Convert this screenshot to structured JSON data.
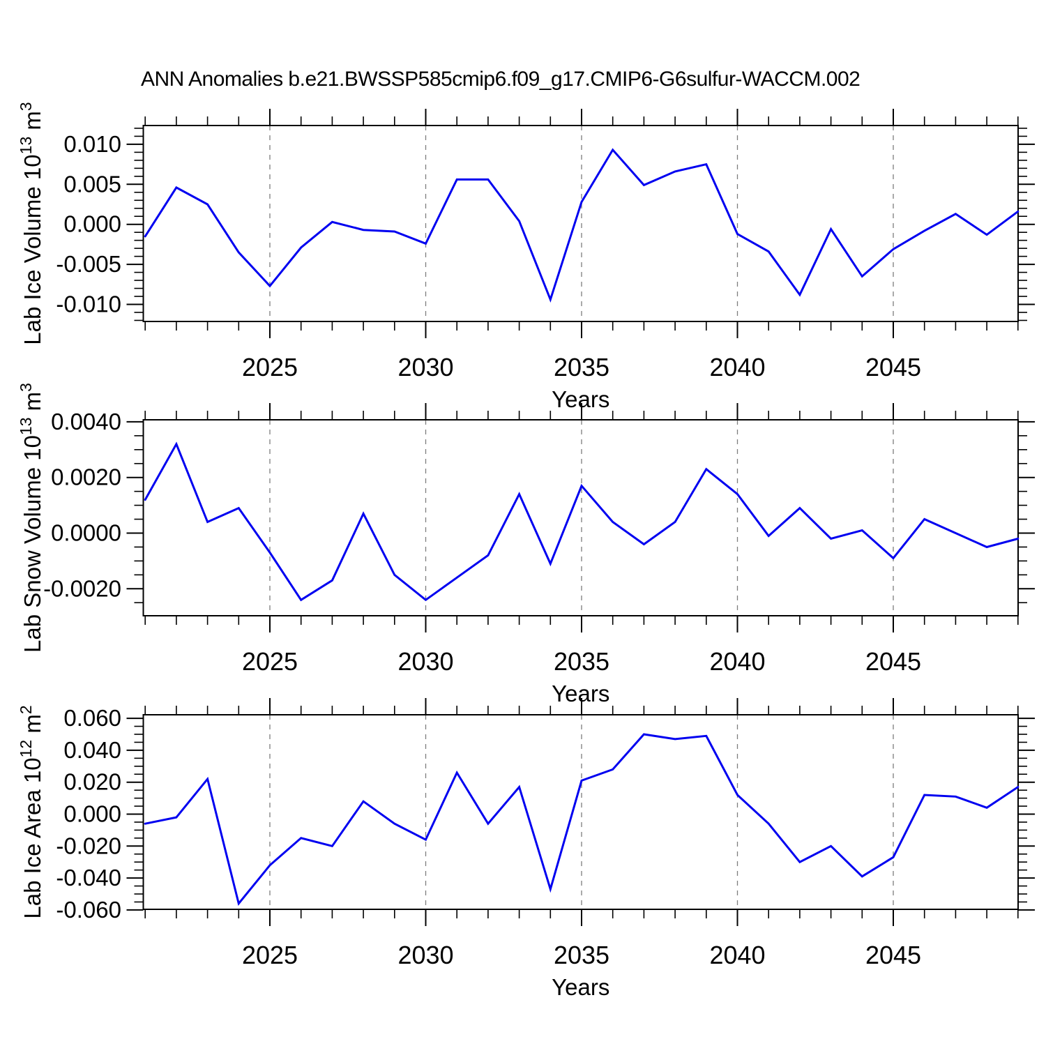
{
  "title": "ANN Anomalies b.e21.BWSSP585cmip6.f09_g17.CMIP6-G6sulfur-WACCM.002",
  "line_color": "#0000f0",
  "grid_color": "#7d7d7d",
  "axis_color": "#000000",
  "chart_data": [
    {
      "type": "line",
      "title": "ANN Anomalies b.e21.BWSSP585cmip6.f09_g17.CMIP6-G6sulfur-WACCM.002",
      "xlabel": "Years",
      "ylabel": "Lab Ice Volume 10^13 m^3",
      "ylabel_rich": [
        {
          "t": "Lab Ice Volume 10"
        },
        {
          "t": "13",
          "sup": true
        },
        {
          "t": " m"
        },
        {
          "t": "3",
          "sup": true
        }
      ],
      "x_range": [
        2021,
        2049
      ],
      "x": [
        2021,
        2022,
        2023,
        2024,
        2025,
        2026,
        2027,
        2028,
        2029,
        2030,
        2031,
        2032,
        2033,
        2034,
        2035,
        2036,
        2037,
        2038,
        2039,
        2040,
        2041,
        2042,
        2043,
        2044,
        2045,
        2046,
        2047,
        2048,
        2049
      ],
      "values": [
        -0.0015,
        0.0046,
        0.0025,
        -0.0035,
        -0.0077,
        -0.0029,
        0.0003,
        -0.0007,
        -0.0009,
        -0.0024,
        0.0056,
        0.0056,
        0.0004,
        -0.0094,
        0.0028,
        0.0093,
        0.0049,
        0.0066,
        0.0075,
        -0.0012,
        -0.0034,
        -0.0088,
        -0.0006,
        -0.0065,
        -0.0031,
        -0.0008,
        0.0013,
        -0.0013,
        0.0016
      ],
      "yticks": {
        "values": [
          0.01,
          0.005,
          0.0,
          -0.005,
          -0.01
        ],
        "labels": [
          "0.010",
          "0.005",
          "0.000",
          "-0.005",
          "-0.010"
        ],
        "minor_step": 0.001
      },
      "xticks": {
        "values": [
          2025,
          2030,
          2035,
          2040,
          2045
        ],
        "labels": [
          "2025",
          "2030",
          "2035",
          "2040",
          "2045"
        ],
        "minor_step": 1
      },
      "grid": "dashed vertical at major x ticks",
      "legend": "none"
    },
    {
      "type": "line",
      "title": "",
      "xlabel": "Years",
      "ylabel": "Lab Snow Volume 10^13 m^3",
      "ylabel_rich": [
        {
          "t": "Lab Snow Volume 10"
        },
        {
          "t": "13",
          "sup": true
        },
        {
          "t": " m"
        },
        {
          "t": "3",
          "sup": true
        }
      ],
      "x_range": [
        2021,
        2049
      ],
      "x": [
        2021,
        2022,
        2023,
        2024,
        2025,
        2026,
        2027,
        2028,
        2029,
        2030,
        2031,
        2032,
        2033,
        2034,
        2035,
        2036,
        2037,
        2038,
        2039,
        2040,
        2041,
        2042,
        2043,
        2044,
        2045,
        2046,
        2047,
        2048,
        2049
      ],
      "values": [
        0.0012,
        0.0032,
        0.0004,
        0.0009,
        -0.0007,
        -0.0024,
        -0.0017,
        0.0007,
        -0.0015,
        -0.0024,
        -0.0016,
        -0.0008,
        0.0014,
        -0.0011,
        0.0017,
        0.0004,
        -0.0004,
        0.0004,
        0.0023,
        0.0014,
        -0.0001,
        0.0009,
        -0.0002,
        0.0001,
        -0.0009,
        0.0005,
        0.0,
        -0.0005,
        -0.0002
      ],
      "yticks": {
        "values": [
          0.004,
          0.002,
          0.0,
          -0.002
        ],
        "labels": [
          "0.0040",
          "0.0020",
          "0.0000",
          "-0.0020"
        ],
        "minor_step": 0.0005
      },
      "xticks": {
        "values": [
          2025,
          2030,
          2035,
          2040,
          2045
        ],
        "labels": [
          "2025",
          "2030",
          "2035",
          "2040",
          "2045"
        ],
        "minor_step": 1
      },
      "grid": "dashed vertical at major x ticks",
      "legend": "none"
    },
    {
      "type": "line",
      "title": "",
      "xlabel": "Years",
      "ylabel": "Lab Ice Area 10^12 m^2",
      "ylabel_rich": [
        {
          "t": "Lab Ice Area 10"
        },
        {
          "t": "12",
          "sup": true
        },
        {
          "t": " m"
        },
        {
          "t": "2",
          "sup": true
        }
      ],
      "x_range": [
        2021,
        2049
      ],
      "x": [
        2021,
        2022,
        2023,
        2024,
        2025,
        2026,
        2027,
        2028,
        2029,
        2030,
        2031,
        2032,
        2033,
        2034,
        2035,
        2036,
        2037,
        2038,
        2039,
        2040,
        2041,
        2042,
        2043,
        2044,
        2045,
        2046,
        2047,
        2048,
        2049
      ],
      "values": [
        -0.006,
        -0.002,
        0.022,
        -0.056,
        -0.032,
        -0.015,
        -0.02,
        0.008,
        -0.006,
        -0.016,
        0.026,
        -0.006,
        0.017,
        -0.047,
        0.021,
        0.028,
        0.05,
        0.047,
        0.049,
        0.012,
        -0.006,
        -0.03,
        -0.02,
        -0.039,
        -0.027,
        0.012,
        0.011,
        0.004,
        0.017
      ],
      "yticks": {
        "values": [
          0.06,
          0.04,
          0.02,
          0.0,
          -0.02,
          -0.04,
          -0.06
        ],
        "labels": [
          "0.060",
          "0.040",
          "0.020",
          "0.000",
          "-0.020",
          "-0.040",
          "-0.060"
        ],
        "minor_step": 0.005
      },
      "xticks": {
        "values": [
          2025,
          2030,
          2035,
          2040,
          2045
        ],
        "labels": [
          "2025",
          "2030",
          "2035",
          "2040",
          "2045"
        ],
        "minor_step": 1
      },
      "grid": "dashed vertical at major x ticks",
      "legend": "none"
    }
  ]
}
